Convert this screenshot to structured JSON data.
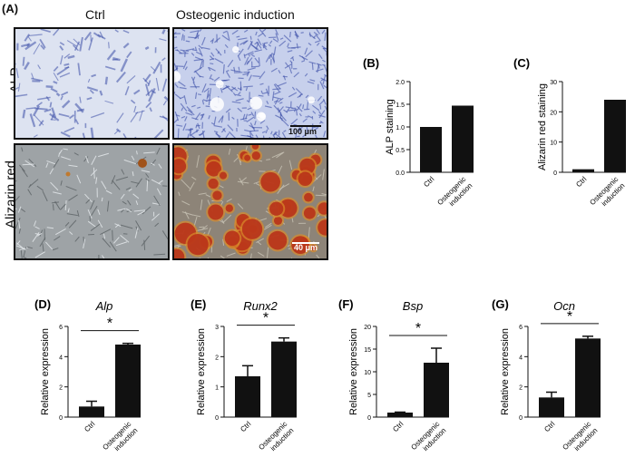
{
  "figure": {
    "panel_a_label": "(A)",
    "col_ctrl": "Ctrl",
    "col_osteo": "Osteogenic induction",
    "row_alp": "ALP",
    "row_alizarin": "Alizarin red",
    "scale_alp": "100 μm",
    "scale_alizarin": "40 μm",
    "colors": {
      "alp_bg": "#dfe4f2",
      "alp_stain": "#3d4fa8",
      "ar_bg": "#9aa0a4",
      "ar_stain": "#b8321a",
      "bar": "#111111"
    }
  },
  "chart_data": [
    {
      "id": "B",
      "panel_label": "(B)",
      "type": "bar",
      "categories": [
        "Ctrl",
        "Osteogenic induction"
      ],
      "category_lines": [
        [
          "Ctrl"
        ],
        [
          "Osteogenic",
          "induction"
        ]
      ],
      "values": [
        1.0,
        1.47
      ],
      "errors": [
        null,
        null
      ],
      "ylabel": "ALP staining",
      "italic_title": "",
      "ylim": [
        0,
        2.0
      ],
      "yticks": [
        "0.0",
        "0.5",
        "1.0",
        "1.5",
        "2.0"
      ],
      "ytick_values": [
        0,
        0.5,
        1.0,
        1.5,
        2.0
      ],
      "significance": ""
    },
    {
      "id": "C",
      "panel_label": "(C)",
      "type": "bar",
      "categories": [
        "Ctrl",
        "Osteogenic induction"
      ],
      "category_lines": [
        [
          "Ctrl"
        ],
        [
          "Osteogenic",
          "induction"
        ]
      ],
      "values": [
        1.0,
        24.0
      ],
      "errors": [
        null,
        null
      ],
      "ylabel": "Alizarin red staining",
      "italic_title": "",
      "ylim": [
        0,
        30
      ],
      "yticks": [
        "0",
        "10",
        "20",
        "30"
      ],
      "ytick_values": [
        0,
        10,
        20,
        30
      ],
      "significance": ""
    },
    {
      "id": "D",
      "panel_label": "(D)",
      "type": "bar",
      "categories": [
        "Ctrl",
        "Osteogenic induction"
      ],
      "category_lines": [
        [
          "Ctrl"
        ],
        [
          "Osteogenic",
          "induction"
        ]
      ],
      "values": [
        0.7,
        4.8
      ],
      "errors": [
        0.35,
        0.08
      ],
      "ylabel": "Relative expression",
      "italic_title": "Alp",
      "ylim": [
        0,
        6
      ],
      "yticks": [
        "0",
        "2",
        "4",
        "6"
      ],
      "ytick_values": [
        0,
        2,
        4,
        6
      ],
      "significance": "*"
    },
    {
      "id": "E",
      "panel_label": "(E)",
      "type": "bar",
      "categories": [
        "Ctrl",
        "Osteogenic induction"
      ],
      "category_lines": [
        [
          "Ctrl"
        ],
        [
          "Osteogenic",
          "induction"
        ]
      ],
      "values": [
        1.35,
        2.5
      ],
      "errors": [
        0.35,
        0.12
      ],
      "ylabel": "Relative expression",
      "italic_title": "Runx2",
      "ylim": [
        0,
        3
      ],
      "yticks": [
        "0",
        "1",
        "2",
        "3"
      ],
      "ytick_values": [
        0,
        1,
        2,
        3
      ],
      "significance": "*"
    },
    {
      "id": "F",
      "panel_label": "(F)",
      "type": "bar",
      "categories": [
        "Ctrl",
        "Osteogenic induction"
      ],
      "category_lines": [
        [
          "Ctrl"
        ],
        [
          "Osteogenic",
          "induction"
        ]
      ],
      "values": [
        1.0,
        12.0
      ],
      "errors": [
        0.1,
        3.2
      ],
      "ylabel": "Relative expression",
      "italic_title": "Bsp",
      "ylim": [
        0,
        20
      ],
      "yticks": [
        "0",
        "5",
        "10",
        "15",
        "20"
      ],
      "ytick_values": [
        0,
        5,
        10,
        15,
        20
      ],
      "significance": "*"
    },
    {
      "id": "G",
      "panel_label": "(G)",
      "type": "bar",
      "categories": [
        "Ctrl",
        "Osteogenic induction"
      ],
      "category_lines": [
        [
          "Ctrl"
        ],
        [
          "Osteogenic",
          "induction"
        ]
      ],
      "values": [
        1.3,
        5.2
      ],
      "errors": [
        0.35,
        0.15
      ],
      "ylabel": "Relative expression",
      "italic_title": "Ocn",
      "ylim": [
        0,
        6
      ],
      "yticks": [
        "0",
        "2",
        "4",
        "6"
      ],
      "ytick_values": [
        0,
        2,
        4,
        6
      ],
      "significance": "*"
    }
  ]
}
